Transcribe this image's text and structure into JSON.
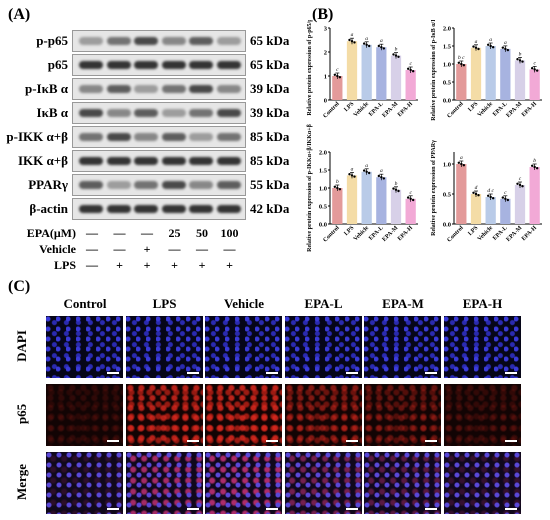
{
  "panels": {
    "a": "(A)",
    "b": "(B)",
    "c": "(C)"
  },
  "blots": [
    {
      "name": "p-p65",
      "kda": "65 kDa"
    },
    {
      "name": "p65",
      "kda": "65 kDa"
    },
    {
      "name": "p-IκB α",
      "kda": "39 kDa"
    },
    {
      "name": "IκB α",
      "kda": "39 kDa"
    },
    {
      "name": "p-IKK α+β",
      "kda": "85 kDa"
    },
    {
      "name": "IKK α+β",
      "kda": "85 kDa"
    },
    {
      "name": "PPARγ",
      "kda": "55 kDa"
    },
    {
      "name": "β-actin",
      "kda": "42 kDa"
    }
  ],
  "treatments": [
    {
      "label": "EPA(μM)",
      "cells": [
        "—",
        "—",
        "—",
        "25",
        "50",
        "100"
      ]
    },
    {
      "label": "Vehicle",
      "cells": [
        "—",
        "—",
        "+",
        "—",
        "—",
        "—"
      ]
    },
    {
      "label": "LPS",
      "cells": [
        "—",
        "+",
        "+",
        "+",
        "+",
        "+"
      ]
    }
  ],
  "colors": {
    "Control": "#e39a9a",
    "LPS": "#f4dca6",
    "Vehicle": "#b9cbe8",
    "EPA-L": "#a7b3e0",
    "EPA-M": "#d7d0e8",
    "EPA-H": "#f2a9d6"
  },
  "chart_data": [
    {
      "type": "bar",
      "ylabel": "Relative protein expression of p-p65/p65",
      "categories": [
        "Control",
        "LPS",
        "Vehicle",
        "EPA-L",
        "EPA-M",
        "EPA-H"
      ],
      "values": [
        1.0,
        2.45,
        2.3,
        2.2,
        1.85,
        1.25
      ],
      "letters": [
        "c",
        "a",
        "a",
        "a",
        "b",
        "c"
      ],
      "ylim": [
        0,
        3
      ],
      "yticks": [
        "0",
        "1",
        "2",
        "3"
      ]
    },
    {
      "type": "bar",
      "ylabel": "Relative protein expression of p-IκB α/IκB α",
      "categories": [
        "Control",
        "LPS",
        "Vehicle",
        "EPA-L",
        "EPA-M",
        "EPA-H"
      ],
      "values": [
        1.0,
        1.45,
        1.5,
        1.42,
        1.1,
        0.85
      ],
      "letters": [
        "b c",
        "a",
        "a",
        "a",
        "b",
        "c"
      ],
      "ylim": [
        0,
        2
      ],
      "yticks": [
        "0.0",
        "0.5",
        "1.0",
        "1.5",
        "2.0"
      ]
    },
    {
      "type": "bar",
      "ylabel": "Relative protein expression of p-IKKα+β/IKKα+β",
      "categories": [
        "Control",
        "LPS",
        "Vehicle",
        "EPA-L",
        "EPA-M",
        "EPA-H"
      ],
      "values": [
        1.0,
        1.35,
        1.45,
        1.3,
        0.95,
        0.7
      ],
      "letters": [
        "b",
        "a",
        "a",
        "a",
        "b",
        "c"
      ],
      "ylim": [
        0,
        2
      ],
      "yticks": [
        "0.0",
        "0.5",
        "1.0",
        "1.5",
        "2.0"
      ]
    },
    {
      "type": "bar",
      "ylabel": "Relative protein expression of PPARγ",
      "categories": [
        "Control",
        "LPS",
        "Vehicle",
        "EPA-L",
        "EPA-M",
        "EPA-H"
      ],
      "values": [
        1.0,
        0.5,
        0.45,
        0.42,
        0.65,
        0.95
      ],
      "letters": [
        "a",
        "d",
        "d c",
        "c",
        "c",
        "b"
      ],
      "ylim": [
        0,
        1.2
      ],
      "yticks": [
        "0.0",
        "0.5",
        "1.0"
      ]
    }
  ],
  "micrographs": {
    "columns": [
      "Control",
      "LPS",
      "Vehicle",
      "EPA-L",
      "EPA-M",
      "EPA-H"
    ],
    "rows": [
      "DAPI",
      "p65",
      "Merge"
    ]
  }
}
